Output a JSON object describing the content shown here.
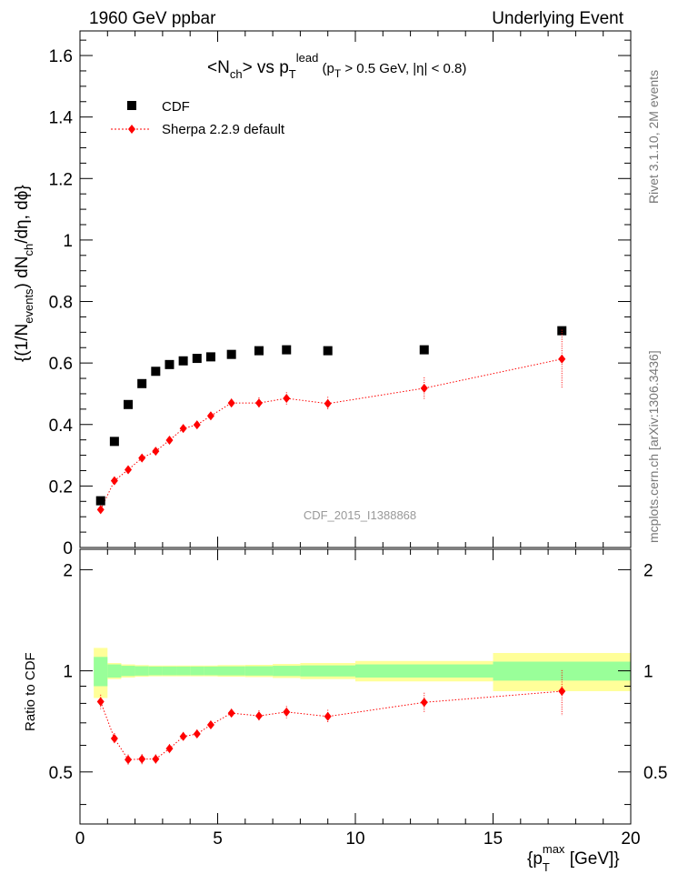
{
  "header": {
    "left": "1960 GeV ppbar",
    "right": "Underlying Event"
  },
  "side_labels": {
    "rivet": "Rivet 3.1.10,  2M events",
    "mcplots": "mcplots.cern.ch [arXiv:1306.3436]"
  },
  "plot_title": {
    "a": "<N",
    "a_sub": "ch",
    "b": "> vs p",
    "b_sub": "T",
    "b_sup": "lead",
    "c": " (p",
    "c_sub": "T",
    "d": " > 0.5 GeV, |η| < 0.8)"
  },
  "watermark": "CDF_2015_I1388868",
  "y_label": {
    "p1": "{(1/N",
    "p1_sub": "events",
    "p2": ") dN",
    "p2_sub": "ch",
    "p3": "/dη, dϕ}"
  },
  "ratio_ylabel": "Ratio to CDF",
  "x_label": {
    "p1": "{p",
    "p1_sub": "T",
    "p1_sup": "max",
    "p2": " [GeV]}"
  },
  "legend": [
    {
      "label": "CDF",
      "color": "#000000",
      "marker": "square"
    },
    {
      "label": "Sherpa 2.2.9 default",
      "color": "#ff0000",
      "marker": "diamond"
    }
  ],
  "colors": {
    "data": "#000000",
    "mc": "#ff0000",
    "band_inner": "#99ff99",
    "band_outer": "#ffff99"
  },
  "chart_data": {
    "type": "scatter",
    "main": {
      "xlim": [
        0,
        20
      ],
      "ylim": [
        0,
        1.68
      ],
      "yticks": [
        {
          "v": 0,
          "label": "0"
        },
        {
          "v": 0.2,
          "label": "0.2"
        },
        {
          "v": 0.4,
          "label": "0.4"
        },
        {
          "v": 0.6,
          "label": "0.6"
        },
        {
          "v": 0.8,
          "label": "0.8"
        },
        {
          "v": 1.0,
          "label": "1"
        },
        {
          "v": 1.2,
          "label": "1.2"
        },
        {
          "v": 1.4,
          "label": "1.4"
        },
        {
          "v": 1.6,
          "label": "1.6"
        }
      ]
    },
    "ratio": {
      "xlim": [
        0,
        20
      ],
      "ylim": [
        0.35,
        2.3
      ],
      "log": true,
      "yticks": [
        {
          "v": 0.5,
          "label": "0.5"
        },
        {
          "v": 1,
          "label": "1"
        },
        {
          "v": 2,
          "label": "2"
        }
      ]
    },
    "xticks": [
      {
        "v": 0,
        "label": "0"
      },
      {
        "v": 5,
        "label": "5"
      },
      {
        "v": 10,
        "label": "10"
      },
      {
        "v": 15,
        "label": "15"
      },
      {
        "v": 20,
        "label": "20"
      }
    ],
    "bins": [
      {
        "x": 0.75,
        "lo": 0.5,
        "hi": 1.0,
        "data": 0.152,
        "mc": 0.123,
        "mcerr": 0.006,
        "inner": 0.1,
        "outer": 0.17
      },
      {
        "x": 1.25,
        "lo": 1.0,
        "hi": 1.5,
        "data": 0.345,
        "mc": 0.217,
        "mcerr": 0.008,
        "inner": 0.045,
        "outer": 0.055
      },
      {
        "x": 1.75,
        "lo": 1.5,
        "hi": 2.0,
        "data": 0.465,
        "mc": 0.253,
        "mcerr": 0.009,
        "inner": 0.035,
        "outer": 0.045
      },
      {
        "x": 2.25,
        "lo": 2.0,
        "hi": 2.5,
        "data": 0.533,
        "mc": 0.291,
        "mcerr": 0.01,
        "inner": 0.032,
        "outer": 0.04
      },
      {
        "x": 2.75,
        "lo": 2.5,
        "hi": 3.0,
        "data": 0.573,
        "mc": 0.313,
        "mcerr": 0.01,
        "inner": 0.03,
        "outer": 0.037
      },
      {
        "x": 3.25,
        "lo": 3.0,
        "hi": 3.5,
        "data": 0.595,
        "mc": 0.349,
        "mcerr": 0.011,
        "inner": 0.03,
        "outer": 0.037
      },
      {
        "x": 3.75,
        "lo": 3.5,
        "hi": 4.0,
        "data": 0.607,
        "mc": 0.387,
        "mcerr": 0.012,
        "inner": 0.03,
        "outer": 0.037
      },
      {
        "x": 4.25,
        "lo": 4.0,
        "hi": 4.5,
        "data": 0.615,
        "mc": 0.399,
        "mcerr": 0.012,
        "inner": 0.03,
        "outer": 0.037
      },
      {
        "x": 4.75,
        "lo": 4.5,
        "hi": 5.0,
        "data": 0.62,
        "mc": 0.428,
        "mcerr": 0.012,
        "inner": 0.03,
        "outer": 0.037
      },
      {
        "x": 5.5,
        "lo": 5.0,
        "hi": 6.0,
        "data": 0.628,
        "mc": 0.47,
        "mcerr": 0.014,
        "inner": 0.031,
        "outer": 0.04
      },
      {
        "x": 6.5,
        "lo": 6.0,
        "hi": 7.0,
        "data": 0.64,
        "mc": 0.47,
        "mcerr": 0.018,
        "inner": 0.032,
        "outer": 0.042
      },
      {
        "x": 7.5,
        "lo": 7.0,
        "hi": 8.0,
        "data": 0.643,
        "mc": 0.485,
        "mcerr": 0.02,
        "inner": 0.035,
        "outer": 0.048
      },
      {
        "x": 9.0,
        "lo": 8.0,
        "hi": 10.0,
        "data": 0.64,
        "mc": 0.468,
        "mcerr": 0.022,
        "inner": 0.038,
        "outer": 0.055
      },
      {
        "x": 12.5,
        "lo": 10.0,
        "hi": 15.0,
        "data": 0.643,
        "mc": 0.518,
        "mcerr": 0.035,
        "inner": 0.045,
        "outer": 0.07
      },
      {
        "x": 17.5,
        "lo": 15.0,
        "hi": 20.0,
        "data": 0.705,
        "mc": 0.613,
        "mcerr": 0.095,
        "inner": 0.065,
        "outer": 0.13
      }
    ]
  }
}
